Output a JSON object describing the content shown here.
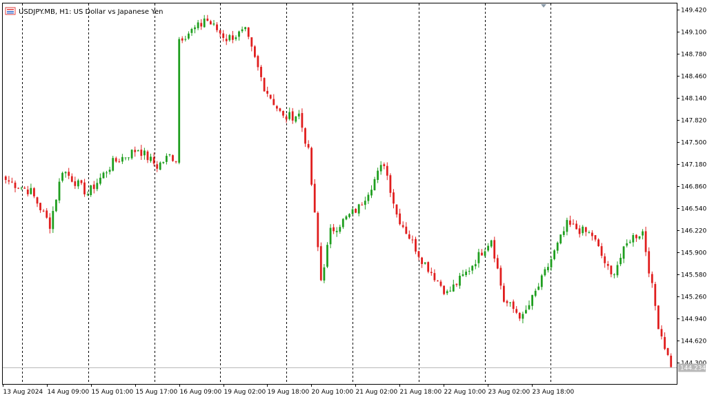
{
  "header": {
    "title": "USDJPY.MB, H1:  US Dollar vs Japanese Yen"
  },
  "colors": {
    "background": "#ffffff",
    "bull": "#1f9e1f",
    "bear": "#e01e1e",
    "axis": "#000000",
    "grid_separator": "#000000",
    "price_line": "#b8b8b8",
    "shift_marker": "#8a9aa8"
  },
  "chart_data": {
    "type": "candlestick",
    "symbol": "USDJPY.MB",
    "timeframe": "H1",
    "title": "USDJPY.MB, H1:  US Dollar vs Japanese Yen",
    "xlabel": "",
    "ylabel": "",
    "ylim": [
      144.13,
      149.48
    ],
    "y_ticks": [
      "149.420",
      "149.100",
      "148.780",
      "148.460",
      "148.140",
      "147.820",
      "147.500",
      "147.180",
      "146.860",
      "146.540",
      "146.220",
      "145.900",
      "145.580",
      "145.260",
      "144.940",
      "144.620",
      "144.300"
    ],
    "x_ticks": [
      "13 Aug 2024",
      "14 Aug 09:00",
      "15 Aug 01:00",
      "15 Aug 17:00",
      "16 Aug 09:00",
      "19 Aug 02:00",
      "19 Aug 18:00",
      "20 Aug 10:00",
      "21 Aug 02:00",
      "21 Aug 18:00",
      "22 Aug 10:00",
      "23 Aug 02:00",
      "23 Aug 18:00"
    ],
    "day_separators": 9,
    "grid": false,
    "legend": "none",
    "last_price": "144.234",
    "bars_approx": 186,
    "ohlc_anchors": [
      {
        "time": "13 Aug 2024 02:00",
        "close": 146.95
      },
      {
        "time": "13 Aug 2024 10:00",
        "close": 146.78
      },
      {
        "time": "13 Aug 2024 16:00",
        "close": 146.3
      },
      {
        "time": "13 Aug 2024 20:00",
        "close": 147.1
      },
      {
        "time": "14 Aug 2024 04:00",
        "close": 146.75
      },
      {
        "time": "14 Aug 2024 12:00",
        "close": 147.2
      },
      {
        "time": "14 Aug 2024 20:00",
        "close": 147.4
      },
      {
        "time": "15 Aug 2024 02:00",
        "close": 147.15
      },
      {
        "time": "15 Aug 2024 06:00",
        "close": 147.3
      },
      {
        "time": "15 Aug 2024 08:00",
        "close": 147.25
      },
      {
        "time": "15 Aug 2024 09:00",
        "close": 149.0
      },
      {
        "time": "15 Aug 2024 16:00",
        "close": 149.2
      },
      {
        "time": "15 Aug 2024 17:00",
        "close": 149.3
      },
      {
        "time": "16 Aug 2024 00:00",
        "close": 149.0
      },
      {
        "time": "16 Aug 2024 06:00",
        "close": 149.1
      },
      {
        "time": "16 Aug 2024 12:00",
        "close": 148.3
      },
      {
        "time": "16 Aug 2024 18:00",
        "close": 147.85
      },
      {
        "time": "16 Aug 2024 23:00",
        "close": 147.9
      },
      {
        "time": "19 Aug 2024 02:00",
        "close": 147.35
      },
      {
        "time": "19 Aug 2024 06:00",
        "close": 145.5
      },
      {
        "time": "19 Aug 2024 09:00",
        "close": 146.2
      },
      {
        "time": "19 Aug 2024 18:00",
        "close": 146.55
      },
      {
        "time": "20 Aug 2024 02:00",
        "close": 147.2
      },
      {
        "time": "20 Aug 2024 06:00",
        "close": 146.45
      },
      {
        "time": "20 Aug 2024 14:00",
        "close": 145.8
      },
      {
        "time": "20 Aug 2024 22:00",
        "close": 145.3
      },
      {
        "time": "21 Aug 2024 04:00",
        "close": 145.6
      },
      {
        "time": "21 Aug 2024 12:00",
        "close": 146.1
      },
      {
        "time": "21 Aug 2024 16:00",
        "close": 145.2
      },
      {
        "time": "21 Aug 2024 22:00",
        "close": 144.95
      },
      {
        "time": "22 Aug 2024 04:00",
        "close": 145.5
      },
      {
        "time": "22 Aug 2024 12:00",
        "close": 146.3
      },
      {
        "time": "22 Aug 2024 20:00",
        "close": 146.15
      },
      {
        "time": "23 Aug 2024 02:00",
        "close": 145.55
      },
      {
        "time": "23 Aug 2024 08:00",
        "close": 146.1
      },
      {
        "time": "23 Aug 2024 12:00",
        "close": 146.2
      },
      {
        "time": "23 Aug 2024 17:00",
        "close": 144.85
      },
      {
        "time": "23 Aug 2024 21:00",
        "close": 144.234
      }
    ]
  }
}
